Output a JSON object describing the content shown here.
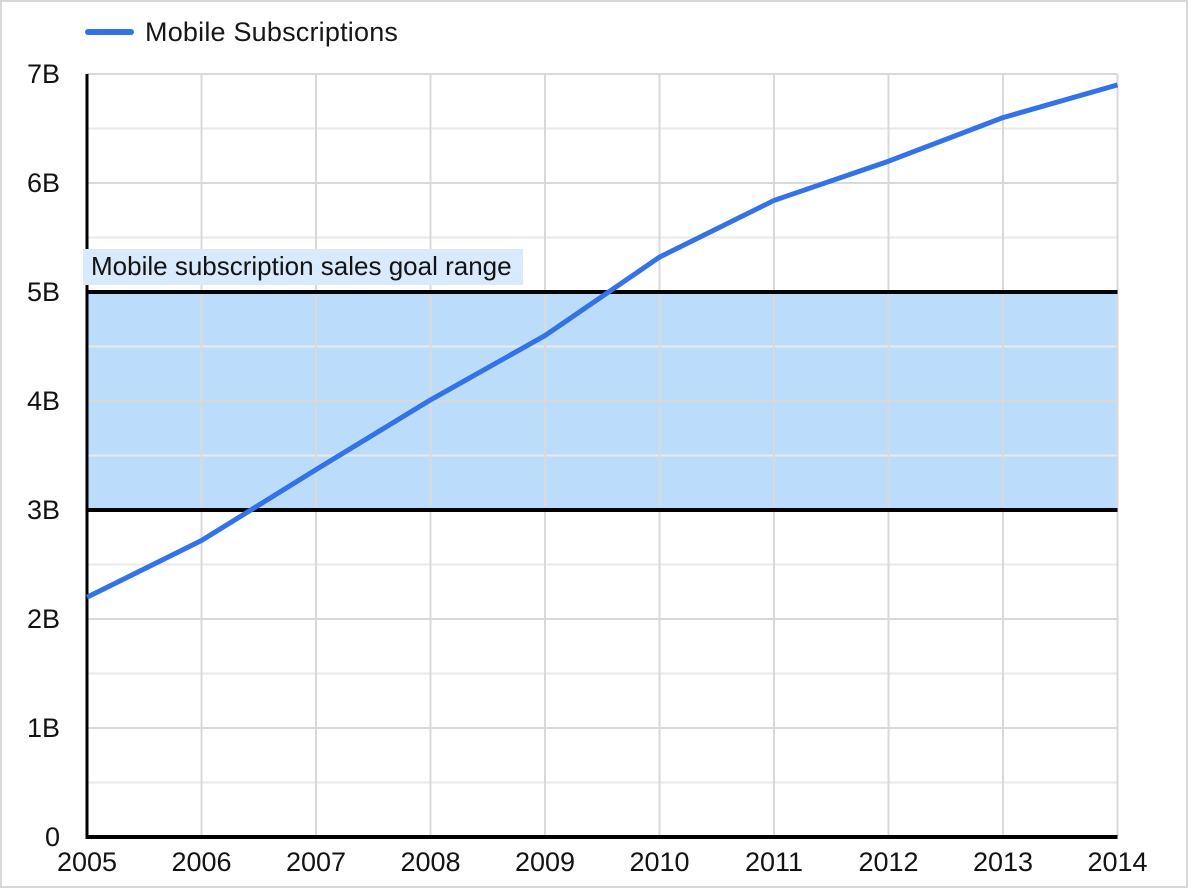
{
  "colors": {
    "line": "#3372E8",
    "band_fill": "#BBDDFB",
    "label_bg": "#D8EAFC",
    "goal_line": "#000000",
    "axis": "#000000",
    "major_gridline": "#D9D9D9",
    "minor_gridline": "#E9E9E9",
    "vertical_gridline": "#D9D9D9",
    "text": "#131313",
    "frame_border": "#D8D8D8"
  },
  "chart_data": {
    "type": "line",
    "title": "",
    "xlabel": "",
    "ylabel": "",
    "x": [
      2005,
      2006,
      2007,
      2008,
      2009,
      2010,
      2011,
      2012,
      2013,
      2014
    ],
    "x_tick_labels": [
      "2005",
      "2006",
      "2007",
      "2008",
      "2009",
      "2010",
      "2011",
      "2012",
      "2013",
      "2014"
    ],
    "y_tick_labels": [
      "0",
      "1B",
      "2B",
      "3B",
      "4B",
      "5B",
      "6B",
      "7B"
    ],
    "y_tick_values": [
      0,
      1,
      2,
      3,
      4,
      5,
      6,
      7
    ],
    "ylim": [
      0,
      7
    ],
    "y_unit": "billions",
    "y_major_step": 1,
    "y_minor_step": 0.5,
    "grid": true,
    "legend_position": "top-left",
    "series": [
      {
        "name": "Mobile Subscriptions",
        "values": [
          2.2,
          2.72,
          3.37,
          4.01,
          4.6,
          5.32,
          5.84,
          6.2,
          6.6,
          6.9
        ]
      }
    ],
    "annotations": {
      "goal_band": {
        "label": "Mobile subscription sales goal range",
        "from": 3,
        "to": 5
      }
    }
  }
}
